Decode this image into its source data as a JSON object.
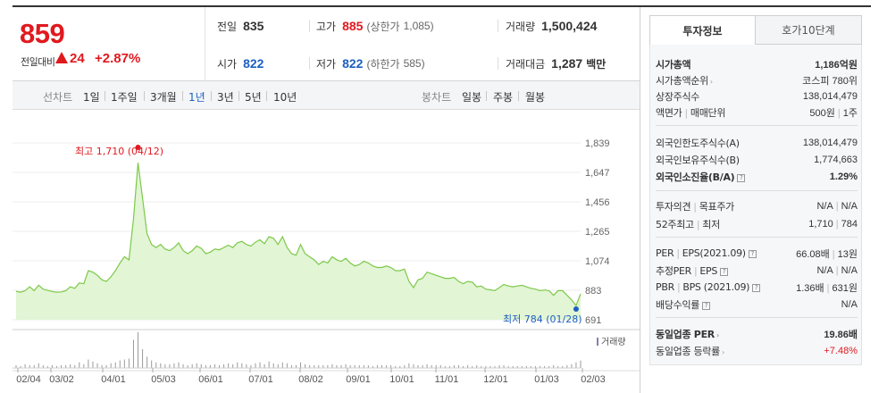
{
  "price": {
    "current": "859",
    "change_label": "전일대비",
    "change_amount": "24",
    "change_rate": "+2.87%"
  },
  "quote": {
    "prev_close_label": "전일",
    "prev_close": "835",
    "high_label": "고가",
    "high": "885",
    "upper_limit_label": "(상한가",
    "upper_limit": "1,085)",
    "volume_label": "거래량",
    "volume": "1,500,424",
    "open_label": "시가",
    "open": "822",
    "low_label": "저가",
    "low": "822",
    "lower_limit_label": "(하한가",
    "lower_limit": "585)",
    "trade_value_label": "거래대금",
    "trade_value": "1,287",
    "trade_value_unit": "백만"
  },
  "toolbar": {
    "line_chart_label": "선차트",
    "periods": [
      "1일",
      "1주일",
      "3개월",
      "1년",
      "3년",
      "5년",
      "10년"
    ],
    "active_period": "1년",
    "candle_chart_label": "봉차트",
    "candles": [
      "일봉",
      "주봉",
      "월봉"
    ]
  },
  "chart_data": {
    "type": "area",
    "y_ticks": [
      "1,839",
      "1,647",
      "1,456",
      "1,265",
      "1,074",
      "883",
      "691"
    ],
    "ylim": [
      691,
      1839
    ],
    "x_ticks": [
      "02/04",
      "03/02",
      "04/01",
      "05/03",
      "06/01",
      "07/01",
      "08/02",
      "09/01",
      "10/01",
      "11/01",
      "12/01",
      "01/03",
      "02/03"
    ],
    "high_annotation": "최고 1,710 (04/12)",
    "low_annotation": "최저 784 (01/28)",
    "volume_label": "거래량",
    "line_color": "#7dc94b",
    "fill_color": "#e2f5d4",
    "series": [
      {
        "values": [
          875,
          870,
          880,
          905,
          880,
          915,
          890,
          882,
          875,
          870,
          872,
          880,
          905,
          895,
          930,
          925,
          1010,
          1000,
          980,
          950,
          940,
          970,
          1010,
          1060,
          1100,
          1080,
          1350,
          1710,
          1480,
          1250,
          1180,
          1160,
          1180,
          1150,
          1140,
          1160,
          1190,
          1140,
          1120,
          1140,
          1170,
          1155,
          1120,
          1130,
          1150,
          1145,
          1160,
          1175,
          1160,
          1190,
          1200,
          1180,
          1170,
          1195,
          1210,
          1185,
          1230,
          1220,
          1180,
          1230,
          1160,
          1120,
          1110,
          1180,
          1120,
          1100,
          1080,
          1050,
          1070,
          1060,
          1100,
          1080,
          1070,
          1090,
          1060,
          1040,
          1050,
          1070,
          1060,
          1040,
          1030,
          1030,
          1040,
          1030,
          1010,
          1010,
          1020,
          940,
          900,
          950,
          960,
          1000,
          990,
          980,
          970,
          960,
          960,
          965,
          940,
          925,
          940,
          935,
          905,
          910,
          890,
          885,
          880,
          900,
          920,
          910,
          905,
          910,
          915,
          905,
          895,
          890,
          880,
          884,
          880,
          850,
          880,
          880,
          850,
          820,
          784,
          859
        ]
      }
    ],
    "volume": [
      3,
      2,
      4,
      3,
      3,
      5,
      3,
      2,
      3,
      2,
      3,
      3,
      4,
      3,
      6,
      4,
      9,
      7,
      5,
      3,
      3,
      5,
      6,
      8,
      9,
      10,
      30,
      38,
      20,
      12,
      8,
      6,
      5,
      4,
      4,
      5,
      6,
      4,
      3,
      4,
      5,
      4,
      3,
      3,
      4,
      3,
      4,
      5,
      4,
      6,
      5,
      4,
      3,
      5,
      6,
      4,
      7,
      5,
      4,
      6,
      5,
      3,
      3,
      6,
      4,
      3,
      3,
      3,
      3,
      3,
      4,
      3,
      3,
      4,
      3,
      3,
      3,
      3,
      3,
      2,
      3,
      3,
      3,
      3,
      2,
      2,
      3,
      5,
      4,
      3,
      3,
      4,
      3,
      3,
      3,
      2,
      2,
      3,
      3,
      2,
      3,
      2,
      3,
      2,
      2,
      2,
      2,
      3,
      3,
      2,
      2,
      2,
      2,
      2,
      2,
      2,
      2,
      2,
      2,
      3,
      2,
      2,
      3,
      4,
      6,
      8
    ]
  },
  "tabs": {
    "invest": "투자정보",
    "hoga": "호가10단계"
  },
  "info": {
    "market_cap_label": "시가총액",
    "market_cap": "1,186억원",
    "rank_label": "시가총액순위",
    "rank": "코스피 780위",
    "shares_label": "상장주식수",
    "shares": "138,014,479",
    "face_label": "액면가",
    "face_sep": "매매단위",
    "face": "500원",
    "unit": "1주",
    "foreign_limit_label": "외국인한도주식수(A)",
    "foreign_limit": "138,014,479",
    "foreign_hold_label": "외국인보유주식수(B)",
    "foreign_hold": "1,774,663",
    "foreign_rate_label": "외국인소진율(B/A)",
    "foreign_rate": "1.29%",
    "opinion_label": "투자의견",
    "target_label": "목표주가",
    "opinion": "N/A",
    "target": "N/A",
    "w52_label": "52주최고",
    "w52_low_label": "최저",
    "w52_high": "1,710",
    "w52_low": "784",
    "per_label": "PER",
    "eps_label": "EPS(2021.09)",
    "per": "66.08배",
    "per_rank": "13원",
    "est_per_label": "추정PER",
    "est_eps_label": "EPS",
    "est_per": "N/A",
    "est_eps": "N/A",
    "pbr_label": "PBR",
    "bps_label": "BPS (2021.09)",
    "pbr": "1.36배",
    "bps": "631원",
    "div_label": "배당수익률",
    "div": "N/A",
    "sector_per_label": "동일업종 PER",
    "sector_per": "19.86배",
    "sector_rate_label": "동일업종 등락률",
    "sector_rate": "+7.48%"
  }
}
